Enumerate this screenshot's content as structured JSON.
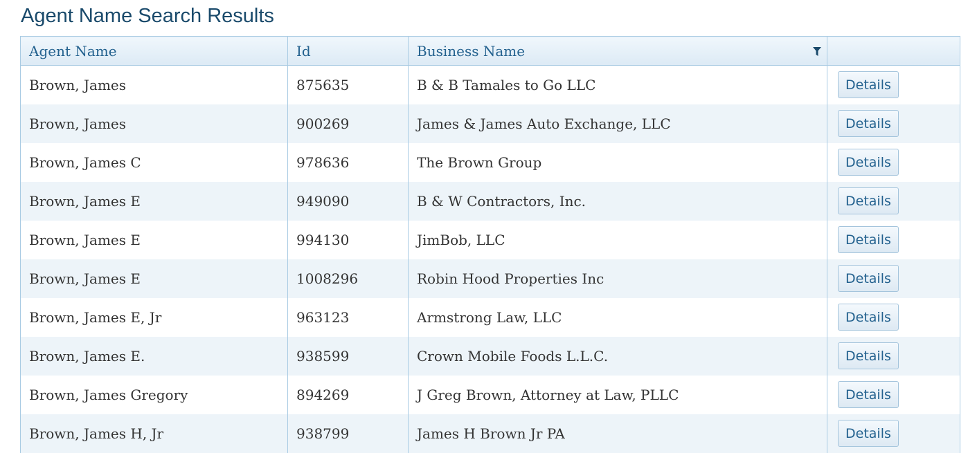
{
  "page": {
    "title": "Agent Name Search Results"
  },
  "table": {
    "columns": {
      "agent_name": "Agent Name",
      "id": "Id",
      "business_name": "Business Name",
      "actions": ""
    },
    "rows": [
      {
        "agent_name": "Brown, James",
        "id": "875635",
        "business_name": "B & B Tamales to Go LLC",
        "action": "Details"
      },
      {
        "agent_name": "Brown, James",
        "id": "900269",
        "business_name": "James & James Auto Exchange, LLC",
        "action": "Details"
      },
      {
        "agent_name": "Brown, James C",
        "id": "978636",
        "business_name": "The Brown Group",
        "action": "Details"
      },
      {
        "agent_name": "Brown, James E",
        "id": "949090",
        "business_name": "B & W Contractors, Inc.",
        "action": "Details"
      },
      {
        "agent_name": "Brown, James E",
        "id": "994130",
        "business_name": "JimBob, LLC",
        "action": "Details"
      },
      {
        "agent_name": "Brown, James E",
        "id": "1008296",
        "business_name": "Robin Hood Properties Inc",
        "action": "Details"
      },
      {
        "agent_name": "Brown, James E, Jr",
        "id": "963123",
        "business_name": "Armstrong Law, LLC",
        "action": "Details"
      },
      {
        "agent_name": "Brown, James E.",
        "id": "938599",
        "business_name": "Crown Mobile Foods L.L.C.",
        "action": "Details"
      },
      {
        "agent_name": "Brown, James Gregory",
        "id": "894269",
        "business_name": "J Greg Brown, Attorney at Law, PLLC",
        "action": "Details"
      },
      {
        "agent_name": "Brown, James H, Jr",
        "id": "938799",
        "business_name": "James H Brown Jr PA",
        "action": "Details"
      }
    ],
    "icons": {
      "business_name_filter": "filter-icon"
    }
  },
  "colors": {
    "title": "#1a4a6b",
    "header_text": "#24628f",
    "grid_border": "#a9cbe3",
    "alt_row": "#edf4f9"
  }
}
